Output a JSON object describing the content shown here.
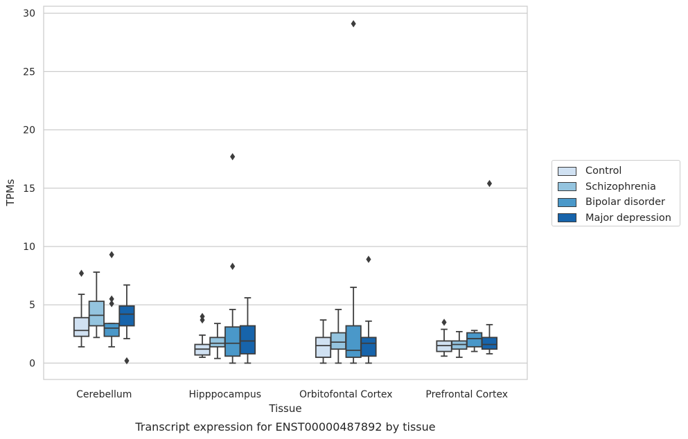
{
  "chart_data": {
    "type": "box",
    "title": "Transcript expression for ENST00000487892 by tissue",
    "xlabel": "Tissue",
    "ylabel": "TPMs",
    "ylim": [
      -1.4,
      30.6
    ],
    "yticks": [
      0,
      5,
      10,
      15,
      20,
      25,
      30
    ],
    "categories": [
      "Cerebellum",
      "Hipppocampus",
      "Orbitofontal Cortex",
      "Prefrontal Cortex"
    ],
    "grid": "horizontal",
    "legend_position": "right",
    "series": [
      {
        "name": "Control",
        "color": "#d0e1f2",
        "boxes": [
          {
            "whislo": 1.4,
            "q1": 2.3,
            "med": 2.8,
            "q3": 3.9,
            "whishi": 5.9,
            "fliers": [
              7.7
            ]
          },
          {
            "whislo": 0.5,
            "q1": 0.7,
            "med": 1.2,
            "q3": 1.6,
            "whishi": 2.4,
            "fliers": [
              3.7,
              4.0
            ]
          },
          {
            "whislo": 0.0,
            "q1": 0.5,
            "med": 1.5,
            "q3": 2.2,
            "whishi": 3.7,
            "fliers": []
          },
          {
            "whislo": 0.6,
            "q1": 1.0,
            "med": 1.5,
            "q3": 1.9,
            "whishi": 2.9,
            "fliers": [
              3.5
            ]
          }
        ]
      },
      {
        "name": "Schizophrenia",
        "color": "#94c4df",
        "boxes": [
          {
            "whislo": 2.2,
            "q1": 3.2,
            "med": 4.1,
            "q3": 5.3,
            "whishi": 7.8,
            "fliers": []
          },
          {
            "whislo": 0.4,
            "q1": 1.4,
            "med": 1.7,
            "q3": 2.2,
            "whishi": 3.4,
            "fliers": []
          },
          {
            "whislo": 0.0,
            "q1": 1.2,
            "med": 1.8,
            "q3": 2.6,
            "whishi": 4.6,
            "fliers": []
          },
          {
            "whislo": 0.5,
            "q1": 1.2,
            "med": 1.6,
            "q3": 1.9,
            "whishi": 2.7,
            "fliers": []
          }
        ]
      },
      {
        "name": "Bipolar disorder",
        "color": "#4a98c9",
        "boxes": [
          {
            "whislo": 1.4,
            "q1": 2.3,
            "med": 3.0,
            "q3": 3.4,
            "whishi": 3.4,
            "fliers": [
              5.1,
              5.5,
              9.3
            ]
          },
          {
            "whislo": 0.0,
            "q1": 0.6,
            "med": 1.7,
            "q3": 3.1,
            "whishi": 4.6,
            "fliers": [
              8.3,
              17.7
            ]
          },
          {
            "whislo": 0.0,
            "q1": 0.5,
            "med": 1.1,
            "q3": 3.2,
            "whishi": 6.5,
            "fliers": [
              29.1
            ]
          },
          {
            "whislo": 1.0,
            "q1": 1.4,
            "med": 2.1,
            "q3": 2.6,
            "whishi": 2.8,
            "fliers": []
          }
        ]
      },
      {
        "name": "Major depression",
        "color": "#1764ab",
        "boxes": [
          {
            "whislo": 2.1,
            "q1": 3.2,
            "med": 4.2,
            "q3": 4.9,
            "whishi": 6.7,
            "fliers": [
              0.2
            ]
          },
          {
            "whislo": 0.0,
            "q1": 0.8,
            "med": 1.9,
            "q3": 3.2,
            "whishi": 5.6,
            "fliers": []
          },
          {
            "whislo": 0.0,
            "q1": 0.6,
            "med": 1.7,
            "q3": 2.2,
            "whishi": 3.6,
            "fliers": [
              8.9
            ]
          },
          {
            "whislo": 0.8,
            "q1": 1.2,
            "med": 1.6,
            "q3": 2.2,
            "whishi": 3.3,
            "fliers": [
              15.4
            ]
          }
        ]
      }
    ]
  }
}
